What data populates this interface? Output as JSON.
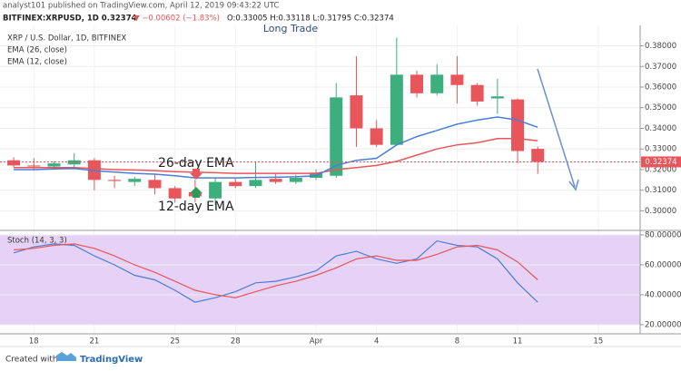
{
  "header": {
    "publisher": "analyst101 published on TradingView.com, April 12, 2019 09:43:22 UTC",
    "symbol": "BITFINEX:XRPUSD, 1D 0.32374",
    "change": "▼ −0.00602 (−1.83%)",
    "ohlc": "O:0.33005 H:0.33118 L:0.31795 C:0.32374"
  },
  "footer": {
    "created": "Created with",
    "brand": "TradingView"
  },
  "chart_data": [
    {
      "type": "candlestick",
      "title": "Long Trade",
      "subtitle": "XRP / U.S. Dollar, 1D, BITFINEX",
      "up_color": "#3dae7e",
      "down_color": "#e8555a",
      "open": [
        0.3245,
        0.322,
        0.3215,
        0.3225,
        0.3245,
        0.315,
        0.314,
        0.315,
        0.311,
        0.309,
        0.306,
        0.314,
        0.312,
        0.3155,
        0.314,
        0.316,
        0.317,
        0.356,
        0.34,
        0.332,
        0.366,
        0.357,
        0.366,
        0.361,
        0.3545,
        0.354,
        0.33005
      ],
      "high": [
        0.326,
        0.3255,
        0.324,
        0.328,
        0.3255,
        0.317,
        0.3165,
        0.3175,
        0.312,
        0.315,
        0.316,
        0.316,
        0.324,
        0.318,
        0.3175,
        0.32,
        0.362,
        0.375,
        0.344,
        0.384,
        0.368,
        0.371,
        0.375,
        0.362,
        0.364,
        0.3545,
        0.33118
      ],
      "low": [
        0.321,
        0.3195,
        0.32,
        0.321,
        0.31,
        0.311,
        0.312,
        0.308,
        0.304,
        0.304,
        0.303,
        0.311,
        0.311,
        0.313,
        0.313,
        0.315,
        0.316,
        0.331,
        0.331,
        0.332,
        0.355,
        0.356,
        0.352,
        0.351,
        0.347,
        0.323,
        0.31795
      ],
      "close": [
        0.322,
        0.3215,
        0.323,
        0.3245,
        0.315,
        0.3145,
        0.3155,
        0.311,
        0.306,
        0.307,
        0.314,
        0.312,
        0.315,
        0.314,
        0.316,
        0.3185,
        0.355,
        0.34,
        0.332,
        0.366,
        0.357,
        0.366,
        0.361,
        0.353,
        0.3555,
        0.329,
        0.32374
      ],
      "lines": [
        {
          "name": "EMA (26, close)",
          "color": "#e8555a",
          "values": [
            0.321,
            0.321,
            0.321,
            0.321,
            0.3205,
            0.32,
            0.3198,
            0.3195,
            0.319,
            0.3187,
            0.3185,
            0.3182,
            0.3182,
            0.3182,
            0.3182,
            0.3182,
            0.32,
            0.321,
            0.322,
            0.324,
            0.327,
            0.33,
            0.332,
            0.333,
            0.335,
            0.335,
            0.334
          ]
        },
        {
          "name": "EMA (12, close)",
          "color": "#4a7ed6",
          "values": [
            0.32,
            0.32,
            0.3203,
            0.3205,
            0.3195,
            0.3188,
            0.3182,
            0.3178,
            0.317,
            0.316,
            0.316,
            0.316,
            0.3162,
            0.3163,
            0.3165,
            0.317,
            0.322,
            0.3245,
            0.3255,
            0.332,
            0.336,
            0.339,
            0.342,
            0.344,
            0.3455,
            0.344,
            0.3405
          ]
        }
      ],
      "annotations": [
        "26-day EMA",
        "12-day EMA"
      ],
      "last_price": 0.32374,
      "xlim": [
        -0.68,
        31.08
      ],
      "xticks": [
        {
          "value": 1,
          "label": "18"
        },
        {
          "value": 4,
          "label": "21"
        },
        {
          "value": 8,
          "label": "25"
        },
        {
          "value": 11,
          "label": "28"
        },
        {
          "value": 15,
          "label": "Apr"
        },
        {
          "value": 18,
          "label": "4"
        },
        {
          "value": 22,
          "label": "8"
        },
        {
          "value": 25,
          "label": "11"
        },
        {
          "value": 29,
          "label": "15"
        }
      ],
      "ylim": [
        0.2914,
        0.3899
      ],
      "yticks": [
        {
          "value": 0.3,
          "label": "0.30000"
        },
        {
          "value": 0.31,
          "label": "0.31000"
        },
        {
          "value": 0.32,
          "label": "0.32000"
        },
        {
          "value": 0.33,
          "label": "0.33000"
        },
        {
          "value": 0.34,
          "label": "0.34000"
        },
        {
          "value": 0.35,
          "label": "0.35000"
        },
        {
          "value": 0.36,
          "label": "0.36000"
        },
        {
          "value": 0.37,
          "label": "0.37000"
        },
        {
          "value": 0.38,
          "label": "0.38000"
        }
      ]
    },
    {
      "type": "line",
      "title": "Stoch (14, 3, 3)",
      "band": [
        20,
        80
      ],
      "band_color": "#e6d2f6",
      "series": [
        {
          "color": "#4a7ed6",
          "values": [
            68,
            72,
            74,
            73,
            66,
            60,
            53,
            50,
            43,
            35,
            38,
            42,
            48,
            49,
            52,
            56,
            66,
            69,
            64,
            61,
            64,
            76,
            73,
            72,
            64,
            48,
            35
          ]
        },
        {
          "color": "#e8555a",
          "values": [
            70,
            71,
            73,
            74,
            71,
            66,
            60,
            55,
            49,
            43,
            40,
            38,
            42,
            46,
            49,
            53,
            58,
            64,
            66,
            63,
            63,
            67,
            72,
            73,
            70,
            62,
            50
          ]
        }
      ],
      "xlim": [
        -0.68,
        31.08
      ],
      "ylim": [
        13.9,
        81.8
      ],
      "yticks": [
        {
          "value": 20,
          "label": "20.00000"
        },
        {
          "value": 40,
          "label": "40.00000"
        },
        {
          "value": 60,
          "label": "60.00000"
        },
        {
          "value": 80,
          "label": "80.00000"
        }
      ]
    }
  ]
}
